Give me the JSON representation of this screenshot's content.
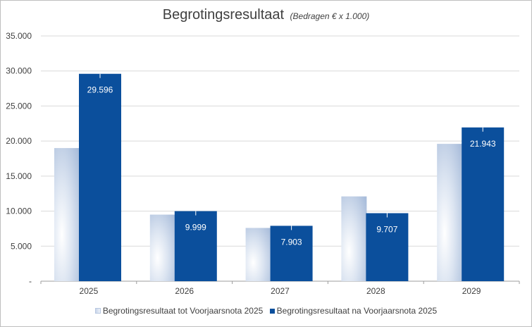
{
  "chart_data": {
    "type": "bar",
    "title": "Begrotingsresultaat",
    "subtitle": "(Bedragen  € x 1.000)",
    "categories": [
      "2025",
      "2026",
      "2027",
      "2028",
      "2029"
    ],
    "series": [
      {
        "name": "Begrotingsresultaat tot Voorjaarsnota 2025",
        "values": [
          19000,
          9500,
          7600,
          12100,
          19600
        ],
        "color": "#c9d6ea"
      },
      {
        "name": "Begrotingsresultaat na Voorjaarsnota 2025",
        "values": [
          29596,
          9999,
          7903,
          9707,
          21943
        ],
        "color": "#0b4f9c"
      }
    ],
    "data_labels": [
      "29.596",
      "9.999",
      "7.903",
      "9.707",
      "21.943"
    ],
    "y_ticks": [
      {
        "value": 0,
        "label": "-"
      },
      {
        "value": 5000,
        "label": "5.000"
      },
      {
        "value": 10000,
        "label": "10.000"
      },
      {
        "value": 15000,
        "label": "15.000"
      },
      {
        "value": 20000,
        "label": "20.000"
      },
      {
        "value": 25000,
        "label": "25.000"
      },
      {
        "value": 30000,
        "label": "30.000"
      },
      {
        "value": 35000,
        "label": "35.000"
      }
    ],
    "ylim": [
      0,
      35000
    ],
    "xlabel": "",
    "ylabel": "",
    "grid": true,
    "legend_position": "bottom"
  }
}
